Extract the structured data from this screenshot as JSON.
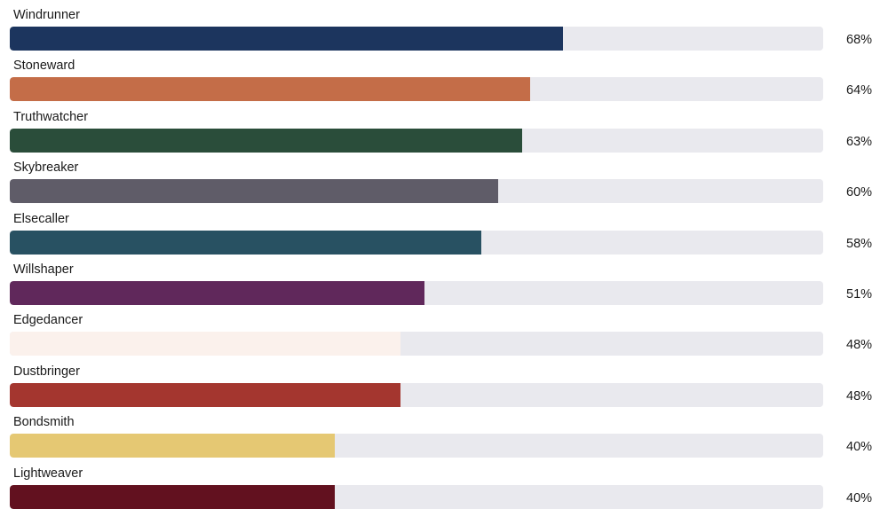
{
  "chart_data": {
    "type": "bar",
    "orientation": "horizontal",
    "categories": [
      "Windrunner",
      "Stoneward",
      "Truthwatcher",
      "Skybreaker",
      "Elsecaller",
      "Willshaper",
      "Edgedancer",
      "Dustbringer",
      "Bondsmith",
      "Lightweaver"
    ],
    "values": [
      68,
      64,
      63,
      60,
      58,
      51,
      48,
      48,
      40,
      40
    ],
    "value_labels": [
      "68%",
      "64%",
      "63%",
      "60%",
      "58%",
      "51%",
      "48%",
      "48%",
      "40%",
      "40%"
    ],
    "colors": [
      "#1c355e",
      "#c46d48",
      "#2a4d3a",
      "#5f5c68",
      "#285162",
      "#60285b",
      "#fbf1ec",
      "#a4362f",
      "#e5c873",
      "#62111f"
    ],
    "track_color": "#e9e9ee",
    "xlim": [
      0,
      100
    ],
    "unit": "%",
    "title": "",
    "xlabel": "",
    "ylabel": "",
    "grid": false,
    "legend": "none"
  }
}
